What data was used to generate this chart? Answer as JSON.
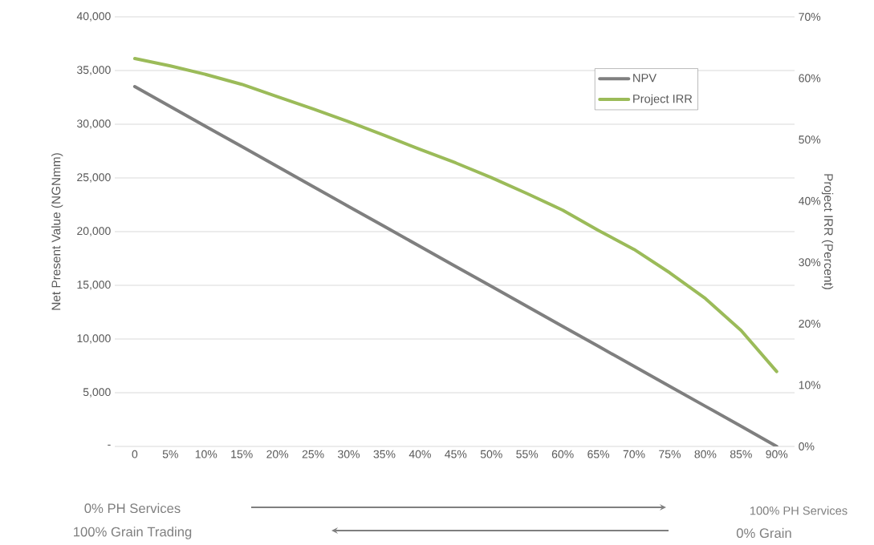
{
  "chart_data": {
    "type": "line",
    "categories": [
      "0",
      "5%",
      "10%",
      "15%",
      "20%",
      "25%",
      "30%",
      "35%",
      "40%",
      "45%",
      "50%",
      "55%",
      "60%",
      "65%",
      "70%",
      "75%",
      "80%",
      "85%",
      "90%"
    ],
    "series": [
      {
        "name": "NPV",
        "color": "#7f7f7f",
        "axis": "y",
        "values": [
          33500,
          31640,
          29780,
          27920,
          26060,
          24200,
          22340,
          20480,
          18620,
          16760,
          14900,
          13040,
          11180,
          9320,
          7460,
          5600,
          3740,
          1880,
          0
        ]
      },
      {
        "name": "Project IRR",
        "color": "#9bbb59",
        "axis": "y2",
        "values": [
          63.2,
          62.0,
          60.6,
          59.0,
          57.0,
          55.0,
          52.9,
          50.7,
          48.4,
          46.2,
          43.8,
          41.2,
          38.5,
          35.2,
          32.1,
          28.3,
          24.1,
          18.9,
          12.2
        ]
      }
    ],
    "ylabel": "Net Present Value (NGNmm)",
    "y2label": "Project IRR (Percent)",
    "ylim": [
      0,
      40000
    ],
    "yticks": [
      {
        "value": 0,
        "label": "-"
      },
      {
        "value": 5000,
        "label": "5,000"
      },
      {
        "value": 10000,
        "label": "10,000"
      },
      {
        "value": 15000,
        "label": "15,000"
      },
      {
        "value": 20000,
        "label": "20,000"
      },
      {
        "value": 25000,
        "label": "25,000"
      },
      {
        "value": 30000,
        "label": "30,000"
      },
      {
        "value": 35000,
        "label": "35,000"
      },
      {
        "value": 40000,
        "label": "40,000"
      }
    ],
    "y2lim": [
      0,
      70
    ],
    "y2ticks": [
      {
        "value": 0,
        "label": "0%"
      },
      {
        "value": 10,
        "label": "10%"
      },
      {
        "value": 20,
        "label": "20%"
      },
      {
        "value": 30,
        "label": "30%"
      },
      {
        "value": 40,
        "label": "40%"
      },
      {
        "value": 50,
        "label": "50%"
      },
      {
        "value": 60,
        "label": "60%"
      },
      {
        "value": 70,
        "label": "70%"
      }
    ],
    "annotations": [
      "0% PH Services",
      "100% Grain Trading",
      "100% PH Services",
      "0% Grain"
    ],
    "grid": "y",
    "legend": "top right",
    "line_style": "solid"
  }
}
